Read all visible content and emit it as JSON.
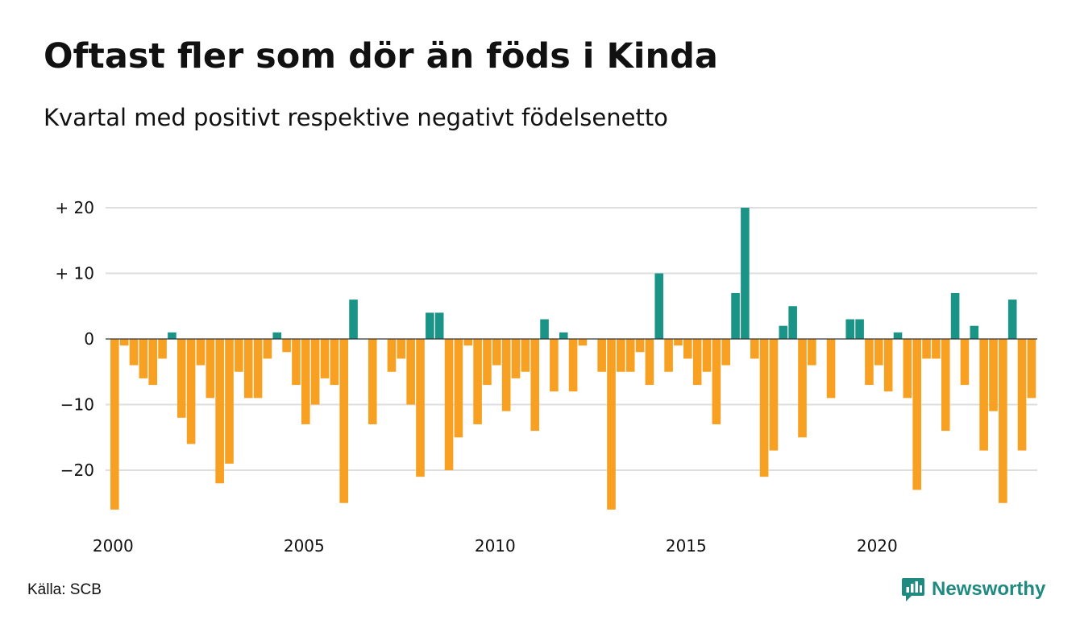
{
  "title": "Oftast fler som dör än föds i Kinda",
  "subtitle": "Kvartal med positivt respektive negativt födelsenetto",
  "source": "Källa: SCB",
  "brand": {
    "name": "Newsworthy",
    "color": "#1e8a80"
  },
  "colors": {
    "positive": "#1a9486",
    "negative": "#f7a021",
    "grid": "#dedede",
    "zero_line": "#333333"
  },
  "chart_data": {
    "type": "bar",
    "title": "Oftast fler som dör än föds i Kinda",
    "subtitle": "Kvartal med positivt respektive negativt födelsenetto",
    "xlabel": "",
    "ylabel": "",
    "ylim": [
      -27,
      22
    ],
    "grid": true,
    "yticks": [
      {
        "value": 20,
        "label": "+ 20"
      },
      {
        "value": 10,
        "label": "+ 10"
      },
      {
        "value": 0,
        "label": "0"
      },
      {
        "value": -10,
        "label": "−10"
      },
      {
        "value": -20,
        "label": "−20"
      }
    ],
    "xticks": [
      {
        "value": 2000,
        "label": "2000"
      },
      {
        "value": 2005,
        "label": "2005"
      },
      {
        "value": 2010,
        "label": "2010"
      },
      {
        "value": 2015,
        "label": "2015"
      },
      {
        "value": 2020,
        "label": "2020"
      }
    ],
    "start_year": 2000,
    "values": [
      -26,
      -1,
      -4,
      -6,
      -7,
      -3,
      1,
      -12,
      -16,
      -4,
      -9,
      -22,
      -19,
      -5,
      -9,
      -9,
      -3,
      1,
      -2,
      -7,
      -13,
      -10,
      -6,
      -7,
      -25,
      6,
      0,
      -13,
      0,
      -5,
      -3,
      -10,
      -21,
      4,
      4,
      -20,
      -15,
      -1,
      -13,
      -7,
      -4,
      -11,
      -6,
      -5,
      -14,
      3,
      -8,
      1,
      -8,
      -1,
      0,
      -5,
      -26,
      -5,
      -5,
      -2,
      -7,
      10,
      -5,
      -1,
      -3,
      -7,
      -5,
      -13,
      -4,
      7,
      20,
      -3,
      -21,
      -17,
      2,
      5,
      -15,
      -4,
      0,
      -9,
      0,
      3,
      3,
      -7,
      -4,
      -8,
      1,
      -9,
      -23,
      -3,
      -3,
      -14,
      7,
      -7,
      2,
      -17,
      -11,
      -25,
      6,
      -17,
      -9
    ]
  }
}
